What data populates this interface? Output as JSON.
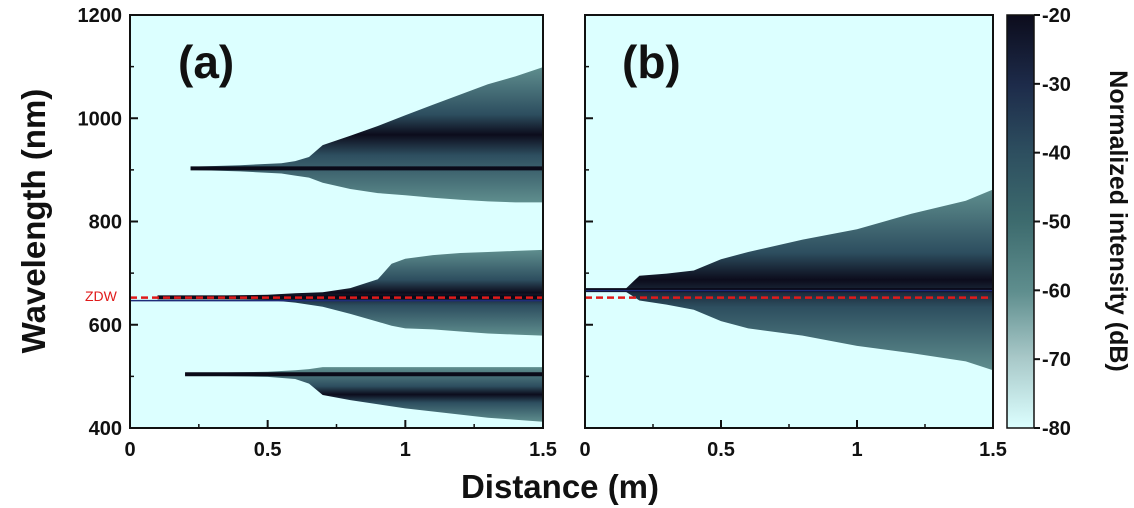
{
  "chart_data": [
    {
      "type": "heatmap",
      "panel_label": "(a)",
      "x_range": [
        0,
        1.5
      ],
      "y_range": [
        400,
        1200
      ],
      "x_ticks": [
        "0",
        "0.5",
        "1",
        "1.5"
      ],
      "y_ticks": [
        "400",
        "600",
        "800",
        "1000",
        "1200"
      ],
      "annotation": "ZDW",
      "zdw_nm": 656,
      "pump_nm": 653,
      "bands": [
        {
          "center_nm": 903,
          "start_m": 0.22,
          "points": [
            [
              0.22,
              3,
              3
            ],
            [
              0.4,
              6,
              6
            ],
            [
              0.55,
              10,
              10
            ],
            [
              0.6,
              14,
              14
            ],
            [
              0.65,
              22,
              18
            ],
            [
              0.7,
              45,
              28
            ],
            [
              0.8,
              63,
              40
            ],
            [
              0.9,
              82,
              48
            ],
            [
              1.0,
              103,
              52
            ],
            [
              1.1,
              123,
              57
            ],
            [
              1.2,
              143,
              61
            ],
            [
              1.3,
              163,
              64
            ],
            [
              1.4,
              178,
              66
            ],
            [
              1.5,
              196,
              66
            ]
          ]
        },
        {
          "center_nm": 653,
          "start_m": 0.1,
          "points": [
            [
              0.1,
              2,
              2
            ],
            [
              0.3,
              3,
              3
            ],
            [
              0.5,
              5,
              5
            ],
            [
              0.6,
              8,
              10
            ],
            [
              0.7,
              10,
              18
            ],
            [
              0.8,
              18,
              32
            ],
            [
              0.9,
              35,
              47
            ],
            [
              0.95,
              65,
              55
            ],
            [
              1.0,
              75,
              60
            ],
            [
              1.1,
              82,
              62
            ],
            [
              1.2,
              86,
              66
            ],
            [
              1.3,
              88,
              70
            ],
            [
              1.4,
              90,
              72
            ],
            [
              1.5,
              92,
              74
            ]
          ]
        },
        {
          "center_nm": 504,
          "start_m": 0.2,
          "points": [
            [
              0.2,
              2,
              2
            ],
            [
              0.5,
              5,
              5
            ],
            [
              0.6,
              8,
              9
            ],
            [
              0.65,
              10,
              18
            ],
            [
              0.7,
              14,
              40
            ],
            [
              0.8,
              14,
              50
            ],
            [
              0.9,
              14,
              58
            ],
            [
              1.0,
              14,
              66
            ],
            [
              1.1,
              14,
              72
            ],
            [
              1.2,
              14,
              78
            ],
            [
              1.3,
              14,
              84
            ],
            [
              1.4,
              14,
              88
            ],
            [
              1.5,
              14,
              92
            ]
          ]
        }
      ]
    },
    {
      "type": "heatmap",
      "panel_label": "(b)",
      "x_range": [
        0,
        1.5
      ],
      "y_range": [
        400,
        1200
      ],
      "x_ticks": [
        "0",
        "0.5",
        "1",
        "1.5"
      ],
      "y_ticks": [],
      "zdw_nm": 656,
      "pump_nm": 667,
      "bands": [
        {
          "center_nm": 667,
          "start_m": 0.0,
          "points": [
            [
              0.0,
              3,
              3
            ],
            [
              0.15,
              3,
              3
            ],
            [
              0.2,
              28,
              20
            ],
            [
              0.3,
              32,
              28
            ],
            [
              0.4,
              38,
              38
            ],
            [
              0.5,
              60,
              60
            ],
            [
              0.6,
              74,
              74
            ],
            [
              0.8,
              98,
              88
            ],
            [
              1.0,
              118,
              108
            ],
            [
              1.2,
              148,
              122
            ],
            [
              1.4,
              173,
              138
            ],
            [
              1.5,
              195,
              155
            ]
          ]
        }
      ]
    }
  ],
  "colorbar": {
    "title": "Normalized intensity (dB)",
    "range": [
      -80,
      -20
    ],
    "tick_labels": [
      "-20",
      "-30",
      "-40",
      "-50",
      "-60",
      "-70",
      "-80"
    ],
    "colors": [
      "#0c0c1c",
      "#1d2b4a",
      "#2d4e5f",
      "#3d6b6e",
      "#5f8e8e",
      "#a8c8c8",
      "#dcffff"
    ]
  },
  "x_label": "Distance (m)",
  "y_label": "Wavelength (nm)",
  "background_color": "#dcffff",
  "zdw_color": "#e01b1b",
  "pump_line_color": "#1f2d7a"
}
